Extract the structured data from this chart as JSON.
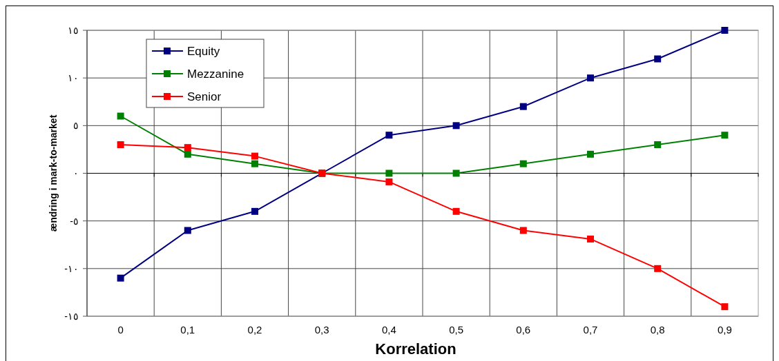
{
  "chart_data": {
    "type": "line",
    "xlabel": "Korrelation",
    "ylabel": "ændring i mark-to-market",
    "categories": [
      "0",
      "0,1",
      "0,2",
      "0,3",
      "0,4",
      "0,5",
      "0,6",
      "0,7",
      "0,8",
      "0,9"
    ],
    "series": [
      {
        "name": "Equity",
        "color": "#000080",
        "values": [
          -11,
          -6,
          -4,
          0,
          4,
          5,
          7,
          10,
          12,
          15
        ]
      },
      {
        "name": "Mezzanine",
        "color": "#008000",
        "values": [
          6,
          2,
          1,
          0,
          0,
          0,
          1,
          2,
          3,
          4
        ]
      },
      {
        "name": "Senior",
        "color": "#ff0000",
        "values": [
          3,
          2.7,
          1.8,
          0,
          -0.9,
          -4,
          -6,
          -6.9,
          -10,
          -14
        ]
      }
    ],
    "ylim": [
      -15,
      15
    ],
    "yticks": [
      {
        "value": 15,
        "label": "١٥"
      },
      {
        "value": 10,
        "label": "١٠"
      },
      {
        "value": 5,
        "label": "٥"
      },
      {
        "value": 0,
        "label": "٠"
      },
      {
        "value": -5,
        "label": "-٥"
      },
      {
        "value": -10,
        "label": "-١٠"
      },
      {
        "value": -15,
        "label": "-١٥"
      }
    ],
    "grid": true,
    "legend": "top left",
    "marker": "square",
    "line_style": "solid"
  }
}
